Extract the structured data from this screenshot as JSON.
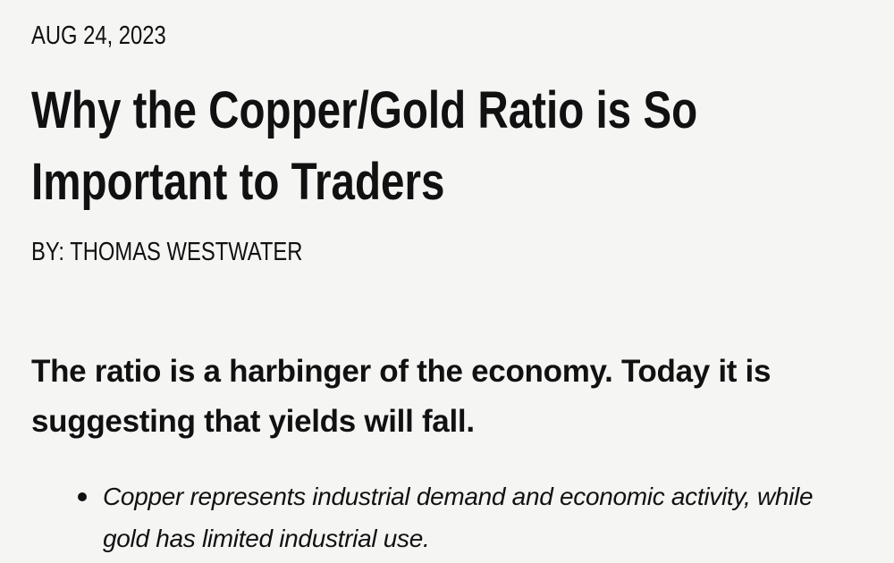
{
  "article": {
    "date": "AUG 24, 2023",
    "title_lines": [
      "Why the Copper/Gold Ratio is So",
      "Important to Traders"
    ],
    "author": "BY: THOMAS WESTWATER",
    "subtitle": "The ratio is a harbinger of the economy. Today it is suggesting that yields will fall.",
    "bullets": [
      "Copper represents industrial demand and economic activity, while gold has limited industrial use."
    ]
  },
  "colors": {
    "background": "#f5f6f4",
    "text": "#111111"
  }
}
